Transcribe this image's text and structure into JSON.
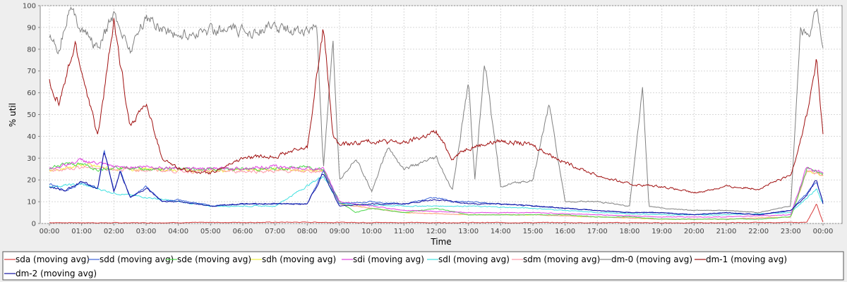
{
  "chart_data": {
    "type": "line",
    "xlabel": "Time",
    "ylabel": "% util",
    "title": "",
    "ylim": [
      0,
      100
    ],
    "yticks": [
      0,
      10,
      20,
      30,
      40,
      50,
      60,
      70,
      80,
      90,
      100
    ],
    "xticks": [
      "00:00",
      "01:00",
      "02:00",
      "03:00",
      "04:00",
      "05:00",
      "06:00",
      "07:00",
      "08:00",
      "09:00",
      "10:00",
      "11:00",
      "12:00",
      "13:00",
      "14:00",
      "15:00",
      "16:00",
      "17:00",
      "18:00",
      "19:00",
      "20:00",
      "21:00",
      "22:00",
      "23:00",
      "00:00"
    ],
    "grid": true,
    "legend_position": "bottom",
    "x_unit": "hours",
    "series": [
      {
        "name": "sda (moving avg)",
        "color": "#d83c3c",
        "points": [
          [
            0,
            0.4
          ],
          [
            2,
            0.3
          ],
          [
            4,
            0.4
          ],
          [
            6,
            0.5
          ],
          [
            8,
            0.6
          ],
          [
            9,
            0.5
          ],
          [
            12,
            0.4
          ],
          [
            16,
            0.4
          ],
          [
            20,
            0.3
          ],
          [
            23.5,
            0.5
          ],
          [
            23.8,
            9
          ],
          [
            24,
            0.5
          ]
        ]
      },
      {
        "name": "sdd (moving avg)",
        "color": "#3c64d8",
        "points": [
          [
            0,
            18
          ],
          [
            0.5,
            15
          ],
          [
            1,
            19
          ],
          [
            1.5,
            16
          ],
          [
            1.7,
            34
          ],
          [
            2,
            15
          ],
          [
            2.2,
            24
          ],
          [
            2.5,
            12
          ],
          [
            3,
            17
          ],
          [
            3.5,
            10
          ],
          [
            4,
            11
          ],
          [
            5,
            8
          ],
          [
            6,
            9
          ],
          [
            7,
            9
          ],
          [
            8,
            9
          ],
          [
            8.5,
            24
          ],
          [
            9,
            9
          ],
          [
            10,
            10
          ],
          [
            11,
            9
          ],
          [
            12,
            12
          ],
          [
            12.5,
            10
          ],
          [
            13,
            10
          ],
          [
            14,
            9
          ],
          [
            15,
            8
          ],
          [
            16,
            7
          ],
          [
            17,
            6
          ],
          [
            18,
            5
          ],
          [
            19,
            5
          ],
          [
            20,
            4
          ],
          [
            21,
            5
          ],
          [
            22,
            4
          ],
          [
            23,
            6
          ],
          [
            23.5,
            14
          ],
          [
            23.8,
            19
          ],
          [
            24,
            10
          ]
        ]
      },
      {
        "name": "sde (moving avg)",
        "color": "#4cd84c",
        "points": [
          [
            0,
            25
          ],
          [
            0.5,
            28
          ],
          [
            1,
            27
          ],
          [
            1.5,
            25
          ],
          [
            2,
            26
          ],
          [
            3,
            25
          ],
          [
            4,
            25
          ],
          [
            5,
            25
          ],
          [
            6,
            25
          ],
          [
            7,
            25
          ],
          [
            8,
            26
          ],
          [
            8.5,
            25
          ],
          [
            9,
            10
          ],
          [
            9.5,
            5
          ],
          [
            10,
            7
          ],
          [
            11,
            5
          ],
          [
            12,
            7
          ],
          [
            13,
            4
          ],
          [
            14,
            4
          ],
          [
            15,
            4
          ],
          [
            16,
            4
          ],
          [
            17,
            3
          ],
          [
            18,
            3
          ],
          [
            19,
            2
          ],
          [
            20,
            2
          ],
          [
            21,
            2
          ],
          [
            22,
            2
          ],
          [
            23,
            3
          ],
          [
            23.5,
            25
          ],
          [
            24,
            23
          ]
        ]
      },
      {
        "name": "sdh (moving avg)",
        "color": "#f0f040",
        "points": [
          [
            0,
            24
          ],
          [
            1,
            27
          ],
          [
            2,
            25
          ],
          [
            3,
            25
          ],
          [
            5,
            24
          ],
          [
            7,
            25
          ],
          [
            8.5,
            24
          ],
          [
            9,
            9
          ],
          [
            11,
            5
          ],
          [
            13,
            4
          ],
          [
            15,
            4
          ],
          [
            17,
            3
          ],
          [
            19,
            2
          ],
          [
            21,
            2
          ],
          [
            23,
            3
          ],
          [
            23.5,
            24
          ],
          [
            24,
            22
          ]
        ]
      },
      {
        "name": "sdi (moving avg)",
        "color": "#e040e0",
        "points": [
          [
            0,
            25
          ],
          [
            1,
            29
          ],
          [
            2,
            26
          ],
          [
            3,
            26
          ],
          [
            5,
            25
          ],
          [
            7,
            26
          ],
          [
            8.5,
            25
          ],
          [
            9,
            10
          ],
          [
            11,
            6
          ],
          [
            13,
            5
          ],
          [
            15,
            5
          ],
          [
            17,
            4
          ],
          [
            19,
            3
          ],
          [
            21,
            3
          ],
          [
            23,
            4
          ],
          [
            23.5,
            26
          ],
          [
            24,
            23
          ]
        ]
      },
      {
        "name": "sdl (moving avg)",
        "color": "#40e0e0",
        "points": [
          [
            0,
            17
          ],
          [
            1,
            18
          ],
          [
            2,
            14
          ],
          [
            3,
            12
          ],
          [
            5,
            8
          ],
          [
            7,
            8
          ],
          [
            8.5,
            22
          ],
          [
            9,
            9
          ],
          [
            11,
            8
          ],
          [
            13,
            8
          ],
          [
            15,
            7
          ],
          [
            17,
            5
          ],
          [
            19,
            4
          ],
          [
            21,
            4
          ],
          [
            23,
            5
          ],
          [
            23.8,
            16
          ],
          [
            24,
            9
          ]
        ]
      },
      {
        "name": "sdm (moving avg)",
        "color": "#ff9aa8",
        "points": [
          [
            0,
            24
          ],
          [
            1,
            26
          ],
          [
            2,
            25
          ],
          [
            4,
            24
          ],
          [
            6,
            24
          ],
          [
            8.5,
            24
          ],
          [
            9,
            9
          ],
          [
            11,
            5
          ],
          [
            13,
            4
          ],
          [
            15,
            4
          ],
          [
            17,
            3
          ],
          [
            19,
            2
          ],
          [
            21,
            2
          ],
          [
            23,
            3
          ],
          [
            23.5,
            24
          ],
          [
            24,
            22
          ]
        ]
      },
      {
        "name": "dm-0 (moving avg)",
        "color": "#808080",
        "points": [
          [
            0,
            87
          ],
          [
            0.3,
            80
          ],
          [
            0.6,
            99
          ],
          [
            1,
            90
          ],
          [
            1.5,
            80
          ],
          [
            2,
            96
          ],
          [
            2.5,
            80
          ],
          [
            3,
            95
          ],
          [
            3.5,
            90
          ],
          [
            4,
            86
          ],
          [
            5,
            89
          ],
          [
            6,
            88
          ],
          [
            7,
            90
          ],
          [
            8,
            88
          ],
          [
            8.3,
            90
          ],
          [
            8.5,
            25
          ],
          [
            8.8,
            82
          ],
          [
            9,
            20
          ],
          [
            9.5,
            30
          ],
          [
            10,
            15
          ],
          [
            10.5,
            35
          ],
          [
            11,
            25
          ],
          [
            12,
            30
          ],
          [
            12.5,
            15
          ],
          [
            13,
            65
          ],
          [
            13.2,
            20
          ],
          [
            13.5,
            75
          ],
          [
            14,
            17
          ],
          [
            15,
            20
          ],
          [
            15.5,
            55
          ],
          [
            16,
            10
          ],
          [
            17,
            10
          ],
          [
            18,
            8
          ],
          [
            18.4,
            63
          ],
          [
            18.6,
            8
          ],
          [
            19,
            7
          ],
          [
            20,
            6
          ],
          [
            21,
            6
          ],
          [
            22,
            5
          ],
          [
            23,
            8
          ],
          [
            23.3,
            90
          ],
          [
            23.6,
            85
          ],
          [
            23.8,
            99
          ],
          [
            24,
            80
          ]
        ]
      },
      {
        "name": "dm-1 (moving avg)",
        "color": "#a01010",
        "points": [
          [
            0,
            65
          ],
          [
            0.3,
            55
          ],
          [
            0.8,
            82
          ],
          [
            1,
            70
          ],
          [
            1.5,
            40
          ],
          [
            2,
            92
          ],
          [
            2.5,
            45
          ],
          [
            3,
            55
          ],
          [
            3.5,
            30
          ],
          [
            4,
            25
          ],
          [
            5,
            23
          ],
          [
            6,
            30
          ],
          [
            7,
            31
          ],
          [
            8,
            35
          ],
          [
            8.5,
            90
          ],
          [
            8.8,
            40
          ],
          [
            9,
            36
          ],
          [
            10,
            38
          ],
          [
            11,
            37
          ],
          [
            12,
            42
          ],
          [
            12.5,
            30
          ],
          [
            13,
            35
          ],
          [
            14,
            38
          ],
          [
            15,
            36
          ],
          [
            16,
            28
          ],
          [
            17,
            22
          ],
          [
            18,
            18
          ],
          [
            19,
            17
          ],
          [
            20,
            14
          ],
          [
            21,
            17
          ],
          [
            22,
            16
          ],
          [
            23,
            22
          ],
          [
            23.5,
            50
          ],
          [
            23.8,
            75
          ],
          [
            24,
            40
          ]
        ]
      },
      {
        "name": "dm-2 (moving avg)",
        "color": "#1010a0",
        "points": [
          [
            0,
            17
          ],
          [
            0.5,
            15
          ],
          [
            1,
            19
          ],
          [
            1.5,
            16
          ],
          [
            1.7,
            33
          ],
          [
            2,
            15
          ],
          [
            2.2,
            24
          ],
          [
            2.5,
            12
          ],
          [
            3,
            16
          ],
          [
            3.5,
            10
          ],
          [
            4,
            10
          ],
          [
            5,
            8
          ],
          [
            6,
            9
          ],
          [
            7,
            9
          ],
          [
            8,
            9
          ],
          [
            8.5,
            23
          ],
          [
            9,
            8
          ],
          [
            10,
            9
          ],
          [
            11,
            9
          ],
          [
            12,
            11
          ],
          [
            12.5,
            10
          ],
          [
            13,
            9
          ],
          [
            14,
            9
          ],
          [
            15,
            8
          ],
          [
            16,
            7
          ],
          [
            17,
            6
          ],
          [
            18,
            5
          ],
          [
            19,
            5
          ],
          [
            20,
            4
          ],
          [
            21,
            5
          ],
          [
            22,
            4
          ],
          [
            23,
            6
          ],
          [
            23.5,
            13
          ],
          [
            23.8,
            20
          ],
          [
            24,
            9
          ]
        ]
      }
    ]
  }
}
